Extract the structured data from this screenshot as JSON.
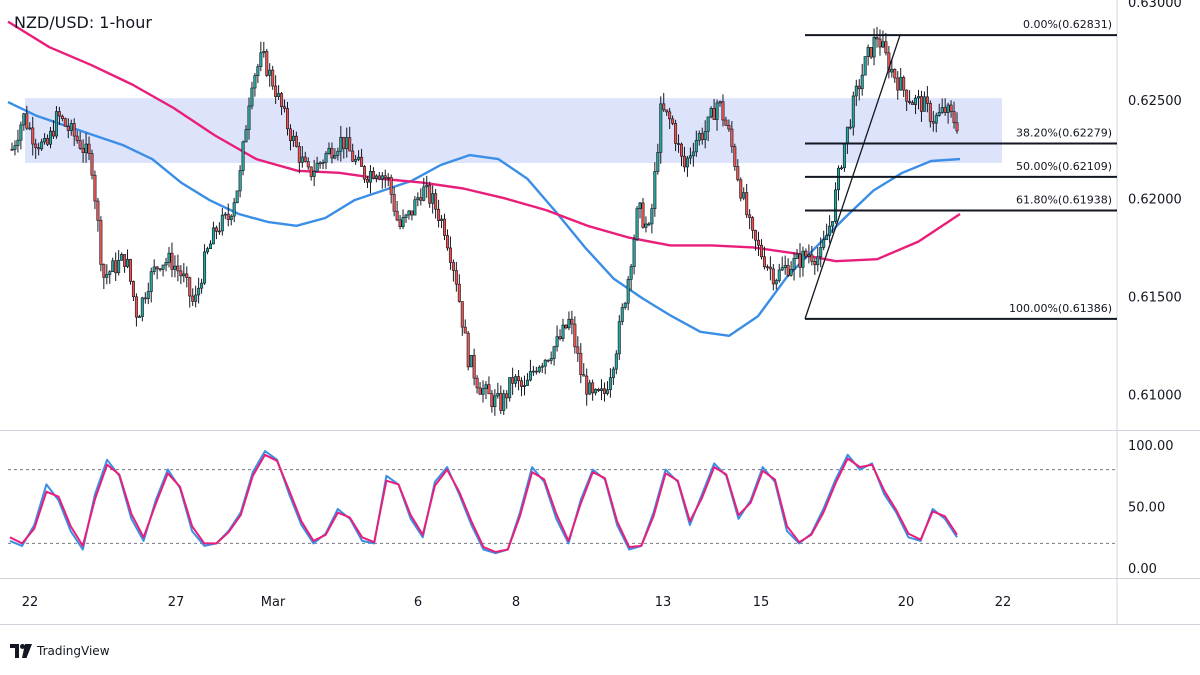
{
  "title": "NZD/USD: 1-hour",
  "brand": "TradingView",
  "colors": {
    "up": "#26a69a",
    "down": "#ef5350",
    "candle": "#131722",
    "ma_fast": "#3a8ee6",
    "ma_slow": "#e91e7a",
    "zone": "#d6defa",
    "stoch_k": "#3a8ee6",
    "stoch_d": "#e91e7a"
  },
  "icons": {
    "logo": "tradingview-logo-icon"
  },
  "chart_data": [
    {
      "type": "candlestick",
      "title": "NZD/USD: 1-hour",
      "ylim": [
        0.6082,
        0.63
      ],
      "y_ticks": [
        "0.63000",
        "0.62500",
        "0.62000",
        "0.61500",
        "0.61000"
      ],
      "y_tick_values": [
        0.63,
        0.625,
        0.62,
        0.615,
        0.61
      ],
      "x_ticks": [
        "22",
        "27",
        "Mar",
        "6",
        "8",
        "13",
        "15",
        "20",
        "22"
      ],
      "grid": false,
      "close_path": [
        0.6225,
        0.6242,
        0.623,
        0.6225,
        0.6242,
        0.6235,
        0.6228,
        0.6218,
        0.616,
        0.6165,
        0.617,
        0.614,
        0.6158,
        0.6168,
        0.6168,
        0.616,
        0.6145,
        0.617,
        0.6185,
        0.619,
        0.621,
        0.626,
        0.6272,
        0.6258,
        0.624,
        0.6225,
        0.6212,
        0.6218,
        0.6225,
        0.623,
        0.622,
        0.6212,
        0.6215,
        0.621,
        0.6185,
        0.6192,
        0.6205,
        0.6198,
        0.6185,
        0.616,
        0.612,
        0.6105,
        0.6098,
        0.6095,
        0.6108,
        0.6102,
        0.6115,
        0.612,
        0.6127,
        0.6138,
        0.611,
        0.6098,
        0.61,
        0.6122,
        0.6155,
        0.6195,
        0.6182,
        0.6245,
        0.6238,
        0.6215,
        0.623,
        0.6235,
        0.625,
        0.6232,
        0.6205,
        0.618,
        0.617,
        0.616,
        0.6165,
        0.6168,
        0.6172,
        0.617,
        0.619,
        0.6225,
        0.625,
        0.627,
        0.6283,
        0.6268,
        0.6258,
        0.625,
        0.6248,
        0.624,
        0.6245,
        0.6238
      ],
      "close_path_x_anchors": [
        "22",
        "27",
        "Mar",
        "6",
        "8",
        "13",
        "15",
        "20"
      ],
      "series": [
        {
          "name": "",
          "kind": "moving-average-fast",
          "values": [
            0.6249,
            0.6242,
            0.6237,
            0.6232,
            0.6227,
            0.622,
            0.6208,
            0.6199,
            0.6192,
            0.6188,
            0.6186,
            0.619,
            0.6199,
            0.6204,
            0.6209,
            0.6217,
            0.6222,
            0.622,
            0.621,
            0.6193,
            0.6175,
            0.6159,
            0.6149,
            0.614,
            0.6132,
            0.613,
            0.614,
            0.616,
            0.6175,
            0.619,
            0.6204,
            0.6213,
            0.6219,
            0.622
          ]
        },
        {
          "name": "",
          "kind": "moving-average-slow",
          "values": [
            0.629,
            0.6277,
            0.6268,
            0.6258,
            0.6246,
            0.6232,
            0.622,
            0.6214,
            0.6213,
            0.621,
            0.6208,
            0.6205,
            0.62,
            0.6194,
            0.6186,
            0.618,
            0.6176,
            0.6176,
            0.6175,
            0.6172,
            0.6168,
            0.6169,
            0.6178,
            0.6192
          ]
        }
      ],
      "fibonacci": [
        {
          "level": "0.00%",
          "price": 0.62831,
          "label": "0.00%(0.62831)"
        },
        {
          "level": "38.20%",
          "price": 0.62279,
          "label": "38.20%(0.62279)"
        },
        {
          "level": "50.00%",
          "price": 0.62109,
          "label": "50.00%(0.62109)"
        },
        {
          "level": "61.80%",
          "price": 0.61938,
          "label": "61.80%(0.61938)"
        },
        {
          "level": "100.00%",
          "price": 0.61386,
          "label": "100.00%(0.61386)"
        }
      ],
      "fib_trend_line": {
        "from_price": 0.61386,
        "to_price": 0.62831
      },
      "resistance_zone": {
        "from": 0.6218,
        "to": 0.6251
      }
    },
    {
      "type": "line",
      "kind": "stochastic",
      "ylim": [
        0,
        100
      ],
      "y_ticks": [
        "100.00",
        "50.00",
        "0.00"
      ],
      "y_tick_values": [
        100,
        50,
        0
      ],
      "overbought": 80,
      "oversold": 20,
      "series": [
        {
          "name": "",
          "kind": "k-line",
          "values": [
            22,
            18,
            35,
            68,
            55,
            30,
            15,
            60,
            88,
            75,
            40,
            22,
            55,
            80,
            65,
            30,
            18,
            20,
            30,
            45,
            78,
            95,
            88,
            60,
            35,
            20,
            28,
            48,
            40,
            22,
            20,
            75,
            68,
            40,
            25,
            70,
            82,
            60,
            35,
            15,
            12,
            15,
            45,
            82,
            70,
            40,
            20,
            55,
            80,
            72,
            35,
            15,
            18,
            45,
            80,
            70,
            35,
            60,
            85,
            75,
            40,
            55,
            82,
            70,
            30,
            20,
            28,
            48,
            72,
            92,
            80,
            85,
            60,
            45,
            25,
            22,
            48,
            40,
            25
          ]
        },
        {
          "name": "",
          "kind": "d-line",
          "values": [
            25,
            20,
            32,
            62,
            58,
            34,
            18,
            56,
            84,
            76,
            44,
            25,
            52,
            77,
            66,
            34,
            20,
            20,
            29,
            43,
            75,
            92,
            87,
            63,
            38,
            22,
            27,
            45,
            41,
            25,
            21,
            71,
            68,
            43,
            27,
            67,
            80,
            62,
            38,
            17,
            13,
            15,
            42,
            78,
            72,
            44,
            22,
            52,
            78,
            73,
            38,
            17,
            18,
            42,
            77,
            71,
            38,
            57,
            82,
            76,
            43,
            53,
            79,
            72,
            34,
            21,
            27,
            45,
            69,
            89,
            82,
            84,
            63,
            47,
            28,
            23,
            46,
            42,
            27
          ]
        }
      ]
    }
  ]
}
